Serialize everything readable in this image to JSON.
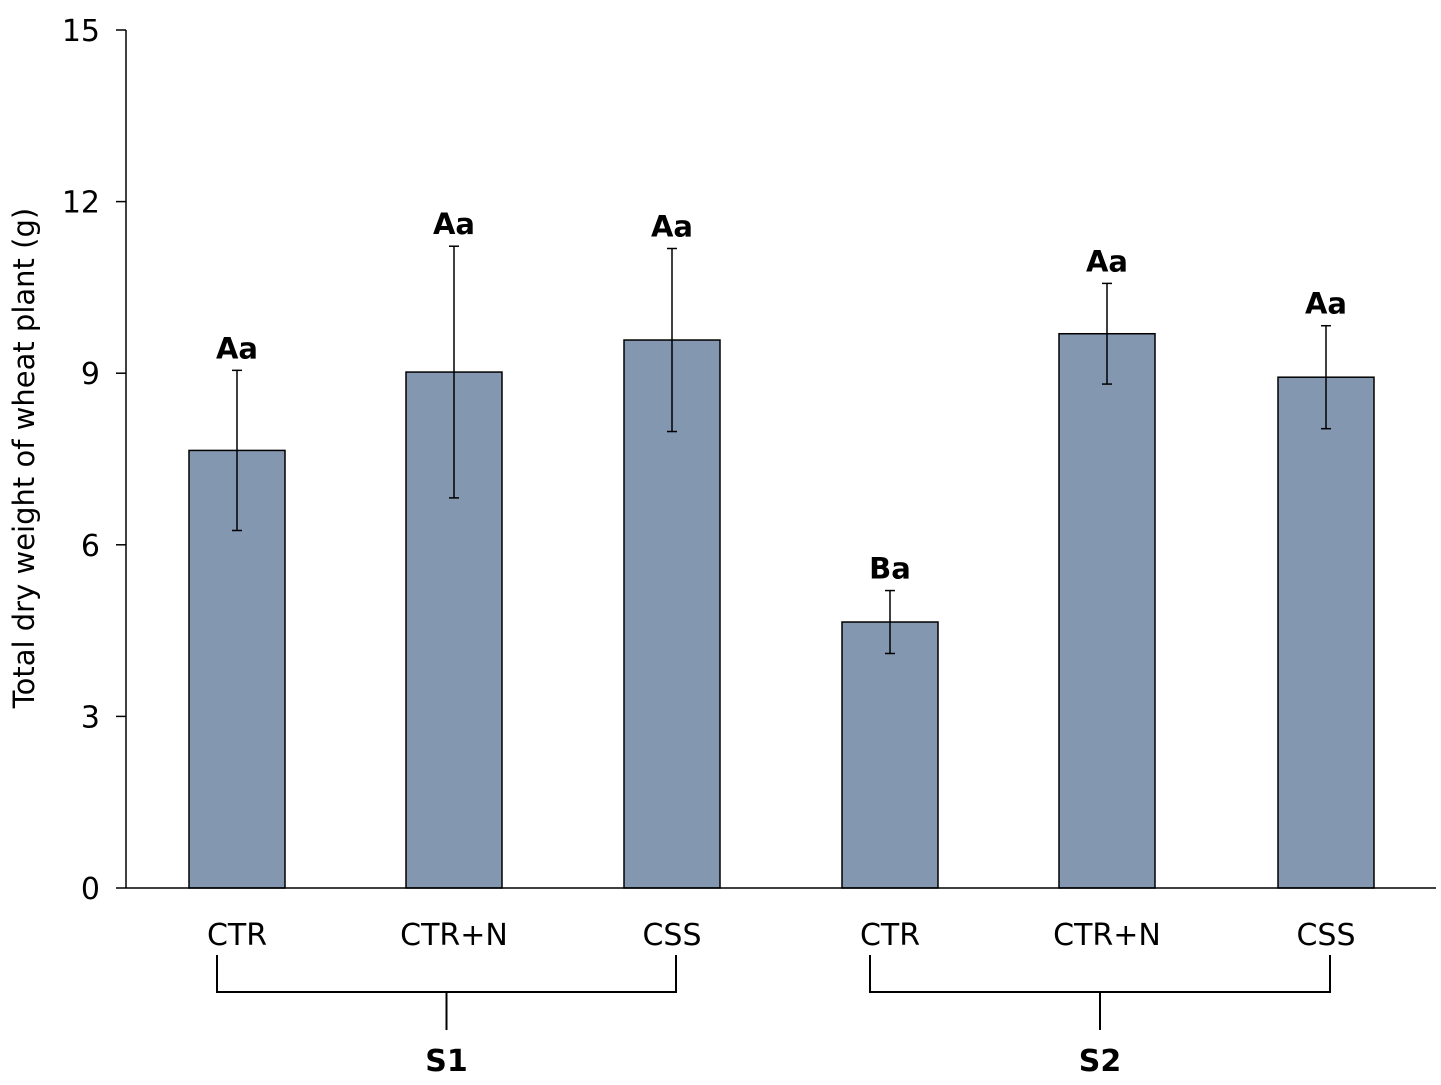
{
  "chart_data": {
    "type": "bar",
    "ylabel": "Total dry weight of wheat plant (g)",
    "xlabel": "",
    "ylim": [
      0,
      15
    ],
    "yticks": [
      0,
      3,
      6,
      9,
      12,
      15
    ],
    "grid": false,
    "bar_color": "#8497b0",
    "categories": [
      "CTR",
      "CTR+N",
      "CSS",
      "CTR",
      "CTR+N",
      "CSS"
    ],
    "values": [
      7.65,
      9.02,
      9.58,
      4.65,
      9.69,
      8.93
    ],
    "errors": [
      1.4,
      2.2,
      1.6,
      0.55,
      0.88,
      0.9
    ],
    "significance": [
      "Aa",
      "Aa",
      "Aa",
      "Ba",
      "Aa",
      "Aa"
    ],
    "groups": [
      {
        "label": "S1",
        "start": 0,
        "end": 2
      },
      {
        "label": "S2",
        "start": 3,
        "end": 5
      }
    ]
  }
}
